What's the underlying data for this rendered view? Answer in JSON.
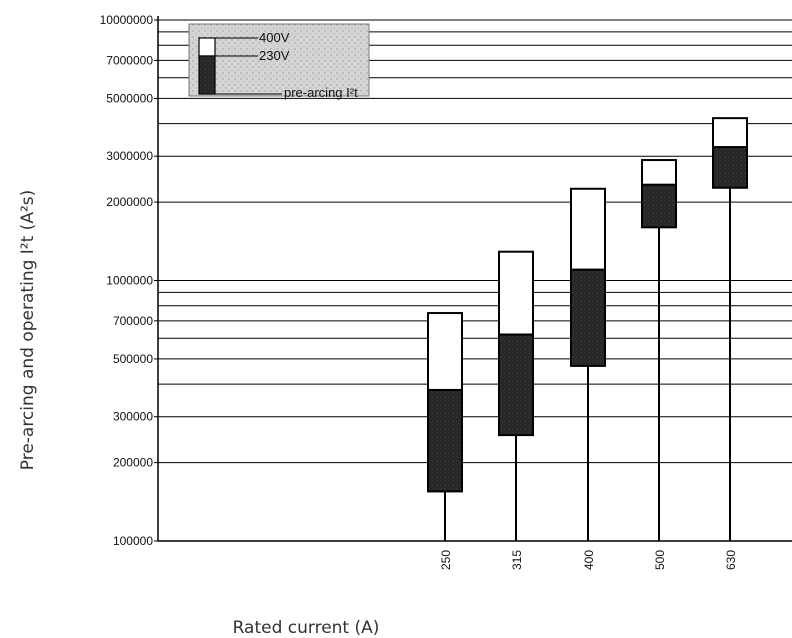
{
  "chart_data": {
    "type": "bar",
    "subtype": "floating-range",
    "xlabel": "Rated current (A)",
    "ylabel": "Pre-arcing and operating I²t (A²s)",
    "yscale": "log",
    "ylim": [
      100000,
      10000000
    ],
    "y_tick_labels": [
      "100000",
      "200000",
      "300000",
      "500000",
      "700000",
      "1000000",
      "2000000",
      "3000000",
      "5000000",
      "7000000",
      "10000000"
    ],
    "y_tick_values": [
      100000,
      200000,
      300000,
      500000,
      700000,
      1000000,
      2000000,
      3000000,
      5000000,
      7000000,
      10000000
    ],
    "categories": [
      "250",
      "315",
      "400",
      "500",
      "630"
    ],
    "series": [
      {
        "name": "400V",
        "low": [
          380000,
          620000,
          1100000,
          2330000,
          3250000
        ],
        "high": [
          750000,
          1290000,
          2250000,
          2900000,
          4200000
        ]
      },
      {
        "name": "230V",
        "low": [
          155000,
          255000,
          470000,
          1600000,
          2270000
        ],
        "high": [
          380000,
          620000,
          1100000,
          2330000,
          3250000
        ]
      }
    ],
    "legend": {
      "placement": "top-left",
      "entries": [
        "400V",
        "230V",
        "pre-arcing I²t"
      ]
    },
    "grid": true,
    "colors": {
      "upper": "#ffffff",
      "lower": "#2b2b2b",
      "legend_bg": "#d9d9d9",
      "line": "#000000"
    }
  }
}
